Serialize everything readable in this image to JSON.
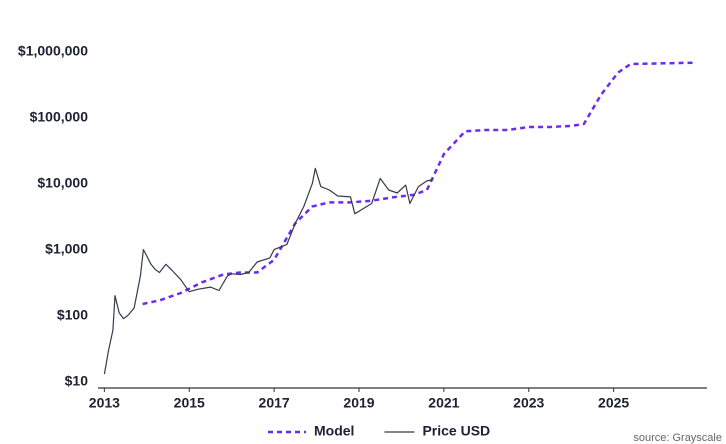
{
  "chart_data": {
    "type": "line",
    "log_y": true,
    "xlim": [
      2012.85,
      2027.2
    ],
    "xticks": [
      2013,
      2015,
      2017,
      2019,
      2021,
      2023,
      2025
    ],
    "ylim": [
      8,
      1500000
    ],
    "yticks": [
      {
        "value": 10,
        "label": "$10"
      },
      {
        "value": 100,
        "label": "$100"
      },
      {
        "value": 1000,
        "label": "$1,000"
      },
      {
        "value": 10000,
        "label": "$10,000"
      },
      {
        "value": 100000,
        "label": "$100,000"
      },
      {
        "value": 1000000,
        "label": "$1,000,000"
      }
    ],
    "series": [
      {
        "name": "Model",
        "color": "#6b2cf0",
        "dashed": true,
        "x": [
          2013.9,
          2014.3,
          2014.8,
          2015.3,
          2015.8,
          2016.2,
          2016.6,
          2017.0,
          2017.5,
          2017.9,
          2018.3,
          2018.8,
          2019.3,
          2019.8,
          2020.3,
          2020.6,
          2021.0,
          2021.5,
          2022.0,
          2022.5,
          2023.0,
          2023.5,
          2024.0,
          2024.3,
          2024.7,
          2025.1,
          2025.4,
          2026.0,
          2026.9
        ],
        "values": [
          150,
          170,
          220,
          320,
          420,
          450,
          450,
          700,
          2500,
          4500,
          5200,
          5200,
          5500,
          6200,
          6800,
          8000,
          28000,
          62000,
          65000,
          65000,
          72000,
          72000,
          75000,
          80000,
          220000,
          480000,
          650000,
          660000,
          680000
        ]
      },
      {
        "name": "Price USD",
        "color": "#343b4c",
        "dashed": false,
        "x": [
          2013.0,
          2013.1,
          2013.2,
          2013.25,
          2013.35,
          2013.45,
          2013.55,
          2013.7,
          2013.85,
          2013.92,
          2014.0,
          2014.1,
          2014.2,
          2014.3,
          2014.45,
          2014.6,
          2014.8,
          2015.0,
          2015.2,
          2015.5,
          2015.7,
          2015.9,
          2016.0,
          2016.2,
          2016.4,
          2016.6,
          2016.9,
          2017.0,
          2017.3,
          2017.5,
          2017.7,
          2017.9,
          2017.97,
          2018.1,
          2018.3,
          2018.5,
          2018.8,
          2018.9,
          2019.0,
          2019.3,
          2019.5,
          2019.7,
          2019.9,
          2020.1,
          2020.2,
          2020.4,
          2020.6,
          2020.75
        ],
        "values": [
          13,
          30,
          60,
          200,
          110,
          90,
          100,
          130,
          400,
          1000,
          800,
          600,
          500,
          450,
          600,
          480,
          350,
          230,
          250,
          270,
          240,
          400,
          430,
          420,
          450,
          650,
          750,
          1000,
          1200,
          2500,
          4500,
          10000,
          17000,
          9000,
          8000,
          6500,
          6300,
          3500,
          3800,
          5000,
          12000,
          8000,
          7200,
          9500,
          5000,
          9000,
          11000,
          11500
        ]
      }
    ],
    "source": "source: Grayscale"
  }
}
